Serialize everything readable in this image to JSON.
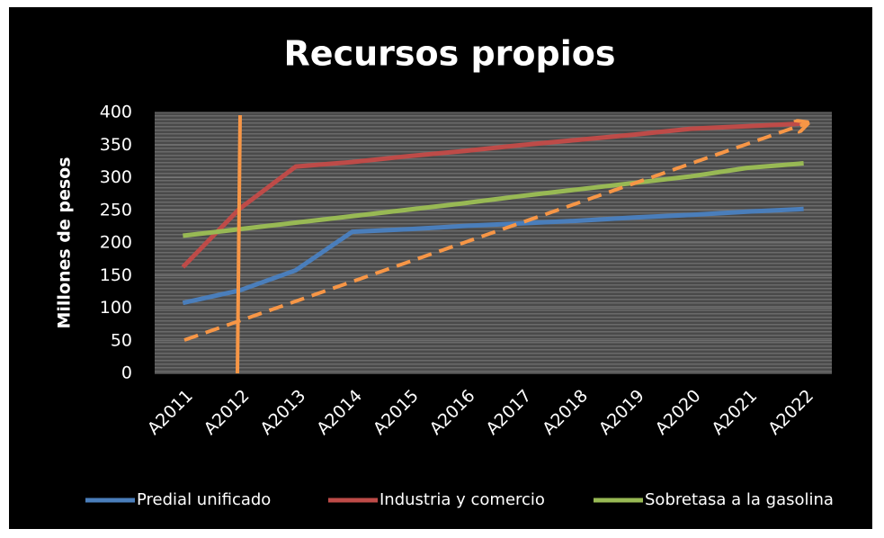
{
  "chart_data": {
    "type": "line",
    "title": "Recursos propios",
    "y_label": "Millones de pesos",
    "categories": [
      "A2011",
      "A2012",
      "A2013",
      "A2014",
      "A2015",
      "A2016",
      "A2017",
      "A2018",
      "A2019",
      "A2020",
      "A2021",
      "A2022"
    ],
    "series": [
      {
        "name": "Predial unificado",
        "color": "#4a7ebb",
        "values": [
          108,
          127,
          158,
          217,
          221,
          226,
          230,
          234,
          239,
          243,
          248,
          252
        ]
      },
      {
        "name": "Industria y comercio",
        "color": "#be4b48",
        "values": [
          163,
          252,
          317,
          324,
          333,
          341,
          350,
          358,
          366,
          375,
          379,
          383
        ]
      },
      {
        "name": "Sobretasa a la gasolina",
        "color": "#98b954",
        "values": [
          211,
          221,
          231,
          241,
          251,
          261,
          272,
          282,
          292,
          302,
          315,
          322
        ]
      }
    ],
    "ylim": [
      0,
      400
    ],
    "yticks": [
      0,
      50,
      100,
      150,
      200,
      250,
      300,
      350,
      400
    ],
    "grid": true,
    "legend": "bottom"
  }
}
